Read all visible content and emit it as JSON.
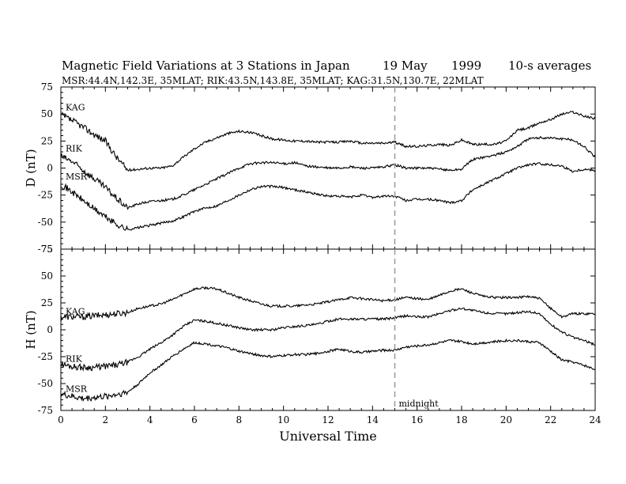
{
  "header": {
    "title": "Magnetic Field Variations at 3 Stations in Japan",
    "date": "19  May",
    "year": "1999",
    "avg": "10-s averages",
    "stations": "MSR:44.4N,142.3E, 35MLAT;  RIK:43.5N,143.8E, 35MLAT;  KAG:31.5N,130.7E, 22MLAT"
  },
  "chart_data": [
    {
      "type": "line",
      "ylabel": "D (nT)",
      "ylim": [
        -75,
        75
      ],
      "yticks": [
        75,
        50,
        25,
        0,
        -25,
        -50,
        -75
      ],
      "xlim": [
        0,
        24
      ],
      "series": [
        {
          "name": "KAG",
          "x": [
            0,
            0.5,
            1,
            1.5,
            2,
            2.5,
            3,
            3.5,
            4,
            4.5,
            5,
            5.5,
            6,
            6.5,
            7,
            7.5,
            8,
            8.5,
            9,
            9.5,
            10,
            10.5,
            11,
            11.5,
            12,
            12.5,
            13,
            13.5,
            14,
            14.5,
            15,
            15.5,
            16,
            16.5,
            17,
            17.5,
            18,
            18.5,
            19,
            19.5,
            20,
            20.5,
            21,
            21.5,
            22,
            22.5,
            23,
            23.5,
            24
          ],
          "y": [
            49,
            44,
            38,
            31,
            25,
            10,
            -2,
            -1,
            0,
            0,
            2,
            10,
            18,
            24,
            28,
            32,
            34,
            33,
            30,
            27,
            26,
            25,
            25,
            24,
            24,
            24,
            25,
            23,
            23,
            23,
            24,
            20,
            20,
            21,
            22,
            21,
            26,
            22,
            22,
            22,
            25,
            35,
            37,
            42,
            45,
            50,
            52,
            48,
            46
          ]
        },
        {
          "name": "RIK",
          "x": [
            0,
            0.5,
            1,
            1.5,
            2,
            2.5,
            3,
            3.5,
            4,
            4.5,
            5,
            5.5,
            6,
            6.5,
            7,
            7.5,
            8,
            8.5,
            9,
            9.5,
            10,
            10.5,
            11,
            11.5,
            12,
            12.5,
            13,
            13.5,
            14,
            14.5,
            15,
            15.5,
            16,
            16.5,
            17,
            17.5,
            18,
            18.5,
            19,
            19.5,
            20,
            20.5,
            21,
            21.5,
            22,
            22.5,
            23,
            23.5,
            24
          ],
          "y": [
            11,
            6,
            -2,
            -10,
            -18,
            -28,
            -37,
            -33,
            -31,
            -30,
            -29,
            -25,
            -20,
            -15,
            -10,
            -5,
            0,
            4,
            5,
            5,
            4,
            5,
            2,
            1,
            0,
            0,
            1,
            0,
            0,
            1,
            3,
            0,
            0,
            0,
            -1,
            -2,
            -1,
            8,
            10,
            12,
            15,
            20,
            27,
            28,
            28,
            27,
            26,
            20,
            10
          ]
        },
        {
          "name": "MSR",
          "x": [
            0,
            0.5,
            1,
            1.5,
            2,
            2.5,
            3,
            3.5,
            4,
            4.5,
            5,
            5.5,
            6,
            6.5,
            7,
            7.5,
            8,
            8.5,
            9,
            9.5,
            10,
            10.5,
            11,
            11.5,
            12,
            12.5,
            13,
            13.5,
            14,
            14.5,
            15,
            15.5,
            16,
            16.5,
            17,
            17.5,
            18,
            18.5,
            19,
            19.5,
            20,
            20.5,
            21,
            21.5,
            22,
            22.5,
            23,
            23.5,
            24
          ],
          "y": [
            -15,
            -22,
            -30,
            -38,
            -45,
            -52,
            -57,
            -55,
            -53,
            -51,
            -49,
            -45,
            -40,
            -37,
            -35,
            -30,
            -25,
            -20,
            -17,
            -17,
            -18,
            -20,
            -22,
            -24,
            -26,
            -26,
            -27,
            -25,
            -27,
            -26,
            -26,
            -30,
            -29,
            -29,
            -30,
            -32,
            -30,
            -20,
            -15,
            -10,
            -5,
            0,
            3,
            4,
            3,
            2,
            -3,
            -1,
            -2
          ]
        }
      ]
    },
    {
      "type": "line",
      "ylabel": "H (nT)",
      "ylim": [
        -75,
        75
      ],
      "yticks": [
        75,
        50,
        25,
        0,
        -25,
        -50,
        -75
      ],
      "xlim": [
        0,
        24
      ],
      "xticks": [
        0,
        2,
        4,
        6,
        8,
        10,
        12,
        14,
        16,
        18,
        20,
        22,
        24
      ],
      "xlabel": "Universal Time",
      "marker": {
        "x": 15,
        "label": "midnight"
      },
      "series": [
        {
          "name": "KAG",
          "x": [
            0,
            0.5,
            1,
            1.5,
            2,
            2.5,
            3,
            3.5,
            4,
            4.5,
            5,
            5.5,
            6,
            6.5,
            7,
            7.5,
            8,
            8.5,
            9,
            9.5,
            10,
            10.5,
            11,
            11.5,
            12,
            12.5,
            13,
            13.5,
            14,
            14.5,
            15,
            15.5,
            16,
            16.5,
            17,
            17.5,
            18,
            18.5,
            19,
            19.5,
            20,
            20.5,
            21,
            21.5,
            22,
            22.5,
            23,
            23.5,
            24
          ],
          "y": [
            12,
            12,
            12,
            13,
            14,
            15,
            16,
            20,
            22,
            24,
            28,
            33,
            38,
            39,
            38,
            34,
            30,
            27,
            24,
            22,
            22,
            22,
            23,
            24,
            26,
            28,
            30,
            29,
            28,
            27,
            28,
            30,
            29,
            28,
            32,
            36,
            38,
            34,
            31,
            30,
            30,
            30,
            31,
            29,
            20,
            12,
            15,
            15,
            15
          ]
        },
        {
          "name": "RIK",
          "x": [
            0,
            0.5,
            1,
            1.5,
            2,
            2.5,
            3,
            3.5,
            4,
            4.5,
            5,
            5.5,
            6,
            6.5,
            7,
            7.5,
            8,
            8.5,
            9,
            9.5,
            10,
            10.5,
            11,
            11.5,
            12,
            12.5,
            13,
            13.5,
            14,
            14.5,
            15,
            15.5,
            16,
            16.5,
            17,
            17.5,
            18,
            18.5,
            19,
            19.5,
            20,
            20.5,
            21,
            21.5,
            22,
            22.5,
            23,
            23.5,
            24
          ],
          "y": [
            -32,
            -34,
            -35,
            -35,
            -34,
            -33,
            -30,
            -25,
            -18,
            -12,
            -5,
            3,
            9,
            8,
            6,
            4,
            2,
            0,
            0,
            0,
            2,
            3,
            4,
            5,
            8,
            10,
            10,
            10,
            10,
            10,
            11,
            13,
            12,
            12,
            15,
            18,
            20,
            18,
            16,
            15,
            15,
            16,
            17,
            15,
            5,
            -2,
            -7,
            -10,
            -14
          ]
        },
        {
          "name": "MSR",
          "x": [
            0,
            0.5,
            1,
            1.5,
            2,
            2.5,
            3,
            3.5,
            4,
            4.5,
            5,
            5.5,
            6,
            6.5,
            7,
            7.5,
            8,
            8.5,
            9,
            9.5,
            10,
            10.5,
            11,
            11.5,
            12,
            12.5,
            13,
            13.5,
            14,
            14.5,
            15,
            15.5,
            16,
            16.5,
            17,
            17.5,
            18,
            18.5,
            19,
            19.5,
            20,
            20.5,
            21,
            21.5,
            22,
            22.5,
            23,
            23.5,
            24
          ],
          "y": [
            -60,
            -62,
            -64,
            -63,
            -62,
            -60,
            -58,
            -50,
            -40,
            -33,
            -25,
            -18,
            -12,
            -13,
            -15,
            -17,
            -20,
            -22,
            -24,
            -25,
            -24,
            -23,
            -23,
            -22,
            -20,
            -18,
            -20,
            -21,
            -20,
            -19,
            -19,
            -16,
            -15,
            -14,
            -12,
            -10,
            -11,
            -13,
            -12,
            -11,
            -10,
            -10,
            -11,
            -12,
            -20,
            -28,
            -30,
            -33,
            -37
          ]
        }
      ]
    }
  ]
}
